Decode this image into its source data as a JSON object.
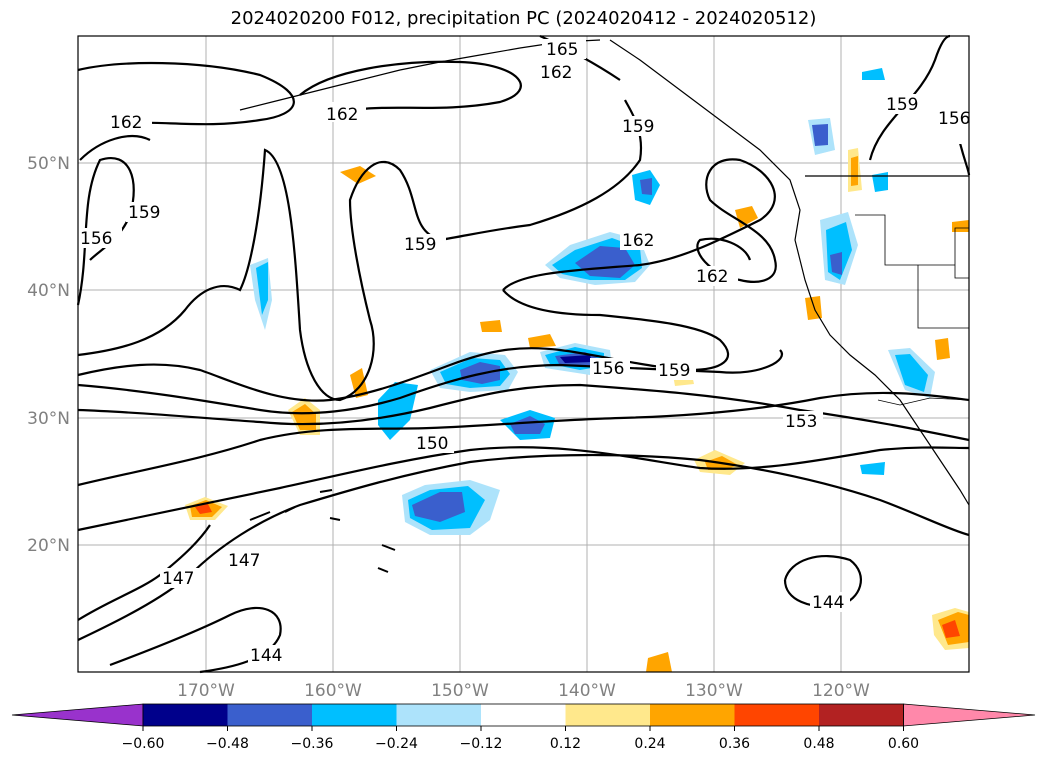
{
  "title": "2024020200 F012, precipitation PC (2024020412 - 2024020512)",
  "lat_labels": [
    "50°N",
    "40°N",
    "30°N",
    "20°N"
  ],
  "lon_labels": [
    "170°W",
    "160°W",
    "150°W",
    "140°W",
    "130°W",
    "120°W"
  ],
  "contour_labels": [
    "165",
    "162",
    "162",
    "162",
    "159",
    "159",
    "159",
    "156",
    "159",
    "156",
    "162",
    "162",
    "156",
    "159",
    "153",
    "150",
    "147",
    "147",
    "144",
    "144"
  ],
  "colorbar": {
    "colors": [
      "#9932cc",
      "#00008b",
      "#3a5fcd",
      "#00bfff",
      "#ade3fb",
      "#ffffff",
      "#ffe88c",
      "#ffa500",
      "#ff4500",
      "#b22222",
      "#ff88aa"
    ],
    "tick_labels": [
      "−0.60",
      "−0.48",
      "−0.36",
      "−0.24",
      "−0.12",
      "0.12",
      "0.24",
      "0.36",
      "0.48",
      "0.60"
    ]
  }
}
